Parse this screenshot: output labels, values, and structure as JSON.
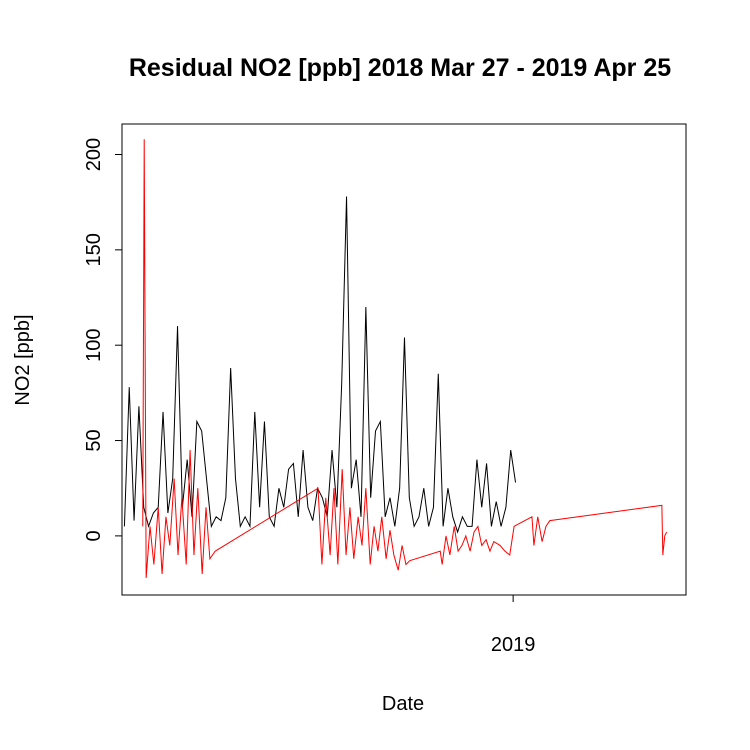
{
  "chart_data": {
    "type": "line",
    "title": "Residual NO2 [ppb] 2018 Mar 27 - 2019 Apr 25",
    "xlabel": "Date",
    "ylabel": "NO2 [ppb]",
    "xlim": [
      2018.19,
      2019.358
    ],
    "xticks": [
      2019
    ],
    "ylim": [
      -31,
      216
    ],
    "yticks": [
      0,
      50,
      100,
      150,
      200
    ],
    "grid": false,
    "series": [
      {
        "color": "#000000",
        "x": [
          2018.195,
          2018.205,
          2018.215,
          2018.225,
          2018.235,
          2018.245,
          2018.255,
          2018.265,
          2018.275,
          2018.285,
          2018.295,
          2018.305,
          2018.315,
          2018.325,
          2018.335,
          2018.345,
          2018.355,
          2018.365,
          2018.375,
          2018.385,
          2018.395,
          2018.405,
          2018.415,
          2018.425,
          2018.435,
          2018.445,
          2018.455,
          2018.465,
          2018.475,
          2018.485,
          2018.495,
          2018.505,
          2018.515,
          2018.525,
          2018.535,
          2018.545,
          2018.555,
          2018.565,
          2018.575,
          2018.585,
          2018.595,
          2018.605,
          2018.615,
          2018.625,
          2018.635,
          2018.645,
          2018.655,
          2018.665,
          2018.675,
          2018.685,
          2018.695,
          2018.705,
          2018.715,
          2018.725,
          2018.735,
          2018.745,
          2018.755,
          2018.765,
          2018.775,
          2018.785,
          2018.795,
          2018.805,
          2018.815,
          2018.825,
          2018.835,
          2018.845,
          2018.855,
          2018.865,
          2018.875,
          2018.885,
          2018.895,
          2018.905,
          2018.915,
          2018.925,
          2018.935,
          2018.945,
          2018.955,
          2018.965,
          2018.975,
          2018.985,
          2018.995,
          2019.005
        ],
        "values": [
          5,
          78,
          8,
          68,
          15,
          5,
          12,
          15,
          65,
          12,
          30,
          110,
          15,
          40,
          10,
          60,
          55,
          30,
          5,
          10,
          8,
          20,
          88,
          30,
          5,
          10,
          5,
          65,
          15,
          60,
          10,
          5,
          25,
          15,
          35,
          38,
          10,
          45,
          15,
          8,
          25,
          20,
          10,
          45,
          15,
          80,
          178,
          25,
          40,
          10,
          120,
          20,
          55,
          60,
          10,
          20,
          5,
          25,
          104,
          20,
          5,
          10,
          25,
          5,
          15,
          85,
          5,
          25,
          10,
          2,
          10,
          5,
          5,
          40,
          15,
          38,
          5,
          18,
          5,
          15,
          45,
          28
        ]
      },
      {
        "color": "#ff0000",
        "x": [
          2018.233,
          2018.236,
          2018.24,
          2018.248,
          2018.256,
          2018.265,
          2018.273,
          2018.281,
          2018.289,
          2018.298,
          2018.306,
          2018.314,
          2018.323,
          2018.331,
          2018.339,
          2018.347,
          2018.356,
          2018.364,
          2018.372,
          2018.383,
          2018.596,
          2018.604,
          2018.612,
          2018.621,
          2018.629,
          2018.637,
          2018.646,
          2018.654,
          2018.662,
          2018.67,
          2018.679,
          2018.687,
          2018.695,
          2018.704,
          2018.712,
          2018.72,
          2018.728,
          2018.737,
          2018.745,
          2018.753,
          2018.762,
          2018.77,
          2018.778,
          2018.786,
          2018.849,
          2018.853,
          2018.861,
          2018.869,
          2018.878,
          2018.886,
          2018.894,
          2018.902,
          2018.911,
          2018.919,
          2018.927,
          2018.935,
          2018.944,
          2018.952,
          2018.96,
          2018.973,
          2018.983,
          2018.993,
          2019.002,
          2019.039,
          2019.043,
          2019.051,
          2019.06,
          2019.068,
          2019.076,
          2019.308,
          2019.31,
          2019.314,
          2019.318
        ],
        "values": [
          5,
          208,
          -22,
          5,
          -15,
          15,
          -20,
          10,
          -5,
          30,
          -10,
          20,
          -15,
          45,
          -10,
          25,
          -20,
          15,
          -12,
          -8,
          25,
          -15,
          20,
          -10,
          25,
          -15,
          35,
          -10,
          15,
          -12,
          10,
          -5,
          25,
          -15,
          5,
          -8,
          10,
          -12,
          3,
          -10,
          -18,
          -5,
          -15,
          -13,
          -8,
          -15,
          0,
          -10,
          5,
          -8,
          -5,
          0,
          -8,
          2,
          5,
          -5,
          -2,
          -8,
          -3,
          -5,
          -8,
          -10,
          5,
          10,
          -5,
          10,
          -3,
          5,
          8,
          16,
          -10,
          0,
          2
        ]
      }
    ]
  }
}
